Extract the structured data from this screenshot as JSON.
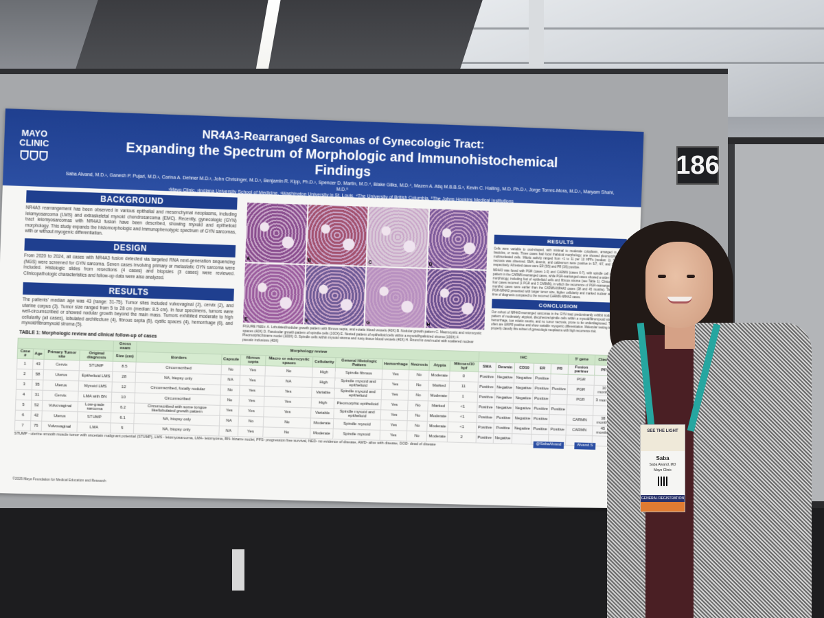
{
  "board": {
    "number": "186"
  },
  "poster": {
    "logo": [
      "MAYO",
      "CLINIC"
    ],
    "title_line1": "NR4A3-Rearranged Sarcomas of Gynecologic Tract:",
    "title_line2": "Expanding the Spectrum of Morphologic and Immunohistochemical Findings",
    "authors": "Saba Alvand, M.D.¹, Ganesh P. Pujari, M.D.¹, Carina A. Dehner M.D.², John Chrisinger, M.D.³, Benjamin R. Kipp, Ph.D.¹, Spencer D. Martin, M.D.⁴, Blake Gilks, M.D.⁴, Mazen A. Atiq M.B.B.S.², Kevin C. Halling, M.D. Ph.D.¹, Jorge Torres-Mora, M.D.¹, Maryam Shahi, M.D.⁵",
    "affiliations": "¹Mayo Clinic, ²Indiana University School of Medicine, ³Washington University in St. Louis, ⁴The University of British Columbia, ⁵The Johns Hopkins Medical Institutions",
    "sections": {
      "background": "BACKGROUND",
      "design": "DESIGN",
      "results": "RESULTS",
      "results_right": "RESULTS",
      "conclusion": "CONCLUSION"
    },
    "background_text": "NR4A3 rearrangement has been observed in various epithelial and mesenchymal neoplasms, including leiomyosarcoma (LMS) and extraskeletal myxoid chondrosarcoma (EMC). Recently, gynecologic (GYN) tract leiomyosarcomas with NR4A3 fusion have been described, showing myxoid and epithelioid morphology. This study expands the histomorphologic and immunophenotypic spectrum of GYN sarcomas, with or without myogenic differentiation.",
    "design_text": "From 2020 to 2024, all cases with NR4A3 fusion detected via targeted RNA next-generation sequencing (NGS) were screened for GYN sarcoma. Seven cases involving primary or metastatic GYN sarcoma were included. Histologic slides from resections (4 cases) and biopsies (3 cases) were reviewed. Clinicopathologic characteristics and follow-up data were also analyzed.",
    "results_text": "The patients' median age was 43 (range: 31-75). Tumor sites included vulvovaginal (2), cervix (2), and uterine corpus (3). Tumor size ranged from 5 to 28 cm (median: 8.5 cm). In four specimens, tumors were well-circumscribed or showed nodular growth beyond the main mass. Tumors exhibited moderate to high cellularity (all cases), lobulated architecture (4), fibrous septa (5), cystic spaces (4), hemorrhage (6), and myxoid/fibromyxoid stroma (5).",
    "fig_labels": [
      "A",
      "B",
      "C",
      "D",
      "E",
      "F",
      "G",
      "H"
    ],
    "fig_colors": [
      "#8a4e8f",
      "#a3516f",
      "#d9c9d8",
      "#7d5a9a",
      "#9b5d9e",
      "#6e5a96",
      "#b890c0",
      "#6a4f8f"
    ],
    "fig_caption": "FIGURE H&Es: A. Lobulated/nodular growth pattern with fibrous septa, and ectatic blood vessels (40X) B. Nodular growth pattern C. Macrocystic and microcystic spaces (40X) D. Fascicular growth pattern of spindle cells (100X) E. Nested pattern of epithelioid cells within a myxoid/hyalinized stroma (100X) F. Pleomorphic/bizarre nuclei (100X) G. Spindle cells within myxoid stroma and rusty tissue blood vessels (40X) H. Round to oval nuclei with scattered nuclear pseudo inclusions (40X)",
    "right_results_text": "Cells were variable to oval-shaped, with minimal to moderate cytoplasm, arranged in cords, fascicles, or nests. Three cases had focal rhabdoid morphology; one showed pleomorphism with multinucleated cells. Mitotic activity ranged from <1 to 11 per 10 HPFs (median: 1). No tumor necrosis was observed. SMA, desmin, and caldesmon were positive in 5/7, 4/7, and 2/7 cases, respectively. All tested cases were ER (5/5) and PR (3/5) positive.",
    "right_results_text2": "NR4A3 was fused with PGR (cases 1-3) and CARMN (cases 6-7), with spindle cell and myxoid pattern in the CARMN-rearranged cases, while PGR-rearranged cases showed a wider spectrum in morphology, including foci of epithelioid cells and fibrous stroma (see Table 1). Clinical follow-up: four cases recurred (1 PGR and 3 CARMN), in which the recurrence of PGR-rearranged (3 and 10 months) cases were earlier than the CARMN-NR4A3 cases (38 and 45 months). The recurrent PGR-NR4A3 presented with larger tumor size, higher cellularity and marked nuclear atypia at the time of diagnosis compared to the recurred CARMN-NR4A3 cases.",
    "conclusion_text": "Our cohort of NR4A3-rearranged sarcomas in the GYN tract predominantly exhibit nodular growth pattern of moderately atypical, discohesive/spindle cells within a myxoid/fibromyxoid stroma, often hemorrhage, low mitotic counts, and no tumor necrosis, prone to be underdiagnosed. The tumors often are ER/PR positive and show variable myogenic differentiation. Molecular testing is critical to properly classify this subset of gynecologic neoplasms with high recurrence risk.",
    "table_title": "TABLE 1: Morphologic review and clinical follow-up of cases",
    "table": {
      "group_headers": {
        "gross": "Gross exam",
        "morph": "Morphology review",
        "ihc": "IHC",
        "gene": "5' gene",
        "clinical": "Clinical"
      },
      "headers": [
        "Case #",
        "Age",
        "Primary Tumor site",
        "Original diagnosis",
        "Size (cm)",
        "Borders",
        "Capsule",
        "fibrous septa",
        "Macro or microcystic spaces",
        "Cellularity",
        "General Histologic Pattern",
        "Hemorrhage",
        "Necrosis",
        "Atypia",
        "Mitoses/10 hpf",
        "SMA",
        "Desmin",
        "CD10",
        "ER",
        "PR",
        "Fusion partner",
        "PFS"
      ],
      "rows": [
        [
          "1",
          "43",
          "Cervix",
          "STUMP",
          "8.5",
          "Circumscribed",
          "No",
          "Yes",
          "No",
          "High",
          "Spindle fibrous",
          "Yes",
          "No",
          "Moderate",
          "0",
          "Positive",
          "Negative",
          "Negative",
          "Positive",
          "",
          "PGR",
          ""
        ],
        [
          "2",
          "58",
          "Uterus",
          "Epithelioid LMS",
          "28",
          "NA, biopsy only",
          "NA",
          "Yes",
          "NA",
          "High",
          "Spindle myxoid and epithelioid",
          "Yes",
          "No",
          "Marked",
          "11",
          "Positive",
          "Negative",
          "Negative",
          "Positive",
          "Positive",
          "PGR",
          "10 months"
        ],
        [
          "3",
          "35",
          "Uterus",
          "Myxoid LMS",
          "12",
          "Circumscribed, focally nodular",
          "No",
          "Yes",
          "Yes",
          "Variable",
          "Spindle myxoid and epithelioid",
          "Yes",
          "No",
          "Moderate",
          "1",
          "Positive",
          "Negative",
          "Negative",
          "Positive",
          "",
          "PGR",
          "3 months"
        ],
        [
          "4",
          "31",
          "Cervix",
          "LMA with BN",
          "10",
          "Circumscribed",
          "No",
          "Yes",
          "Yes",
          "High",
          "Pleomorphic epithelioid",
          "Yes",
          "No",
          "Marked",
          "<1",
          "Positive",
          "Negative",
          "Negative",
          "Positive",
          "Positive",
          "",
          ""
        ],
        [
          "5",
          "52",
          "Vulvovaginal",
          "Low-grade sarcoma",
          "6.2",
          "Circumscribed with some tongue like/lobulated growth pattern",
          "Yes",
          "Yes",
          "Yes",
          "Variable",
          "Spindle myxoid and epithelioid",
          "Yes",
          "No",
          "Moderate",
          "<1",
          "Positive",
          "Positive",
          "Negative",
          "Positive",
          "",
          "CARMN",
          "38 months"
        ],
        [
          "6",
          "42",
          "Uterus",
          "STUMP",
          "6.1",
          "NA, biopsy only",
          "NA",
          "No",
          "No",
          "Moderate",
          "Spindle myxoid",
          "Yes",
          "No",
          "Moderate",
          "<1",
          "Positive",
          "Positive",
          "Negative",
          "Positive",
          "Positive",
          "CARMN",
          "45 months"
        ],
        [
          "7",
          "75",
          "Vulvovaginal",
          "LMA",
          "5",
          "NA, biopsy only",
          "NA",
          "Yes",
          "No",
          "Moderate",
          "Spindle myxoid",
          "Yes",
          "No",
          "Moderate",
          "2",
          "Positive",
          "Negative",
          "",
          "",
          "",
          "",
          ""
        ]
      ]
    },
    "table_footnote": "STUMP - uterine smooth muscle tumor with uncertain malignant potential (STUMP), LMS - leiomyosarcoma, LMA- leiomyoma, BN- bizarre nuclei, PFS- progression free survival, NED- no evidence of disease, AWD- alive with disease, DOD- dead of disease",
    "handles": [
      "@SabaAlvand",
      "Alvand.S"
    ],
    "copyright": "©2025 Mayo Foundation for Medical Education and Research"
  },
  "badge": {
    "top": "SEE THE LIGHT",
    "name": "Saba",
    "full_name": "Saba Alvand, MD",
    "org": "Mayo Clinic",
    "registration": "GENERAL REGISTRATION"
  },
  "colors": {
    "poster_blue": "#1f3f8f",
    "table_green": "#d6ebd0",
    "lanyard": "#26a6a0"
  }
}
